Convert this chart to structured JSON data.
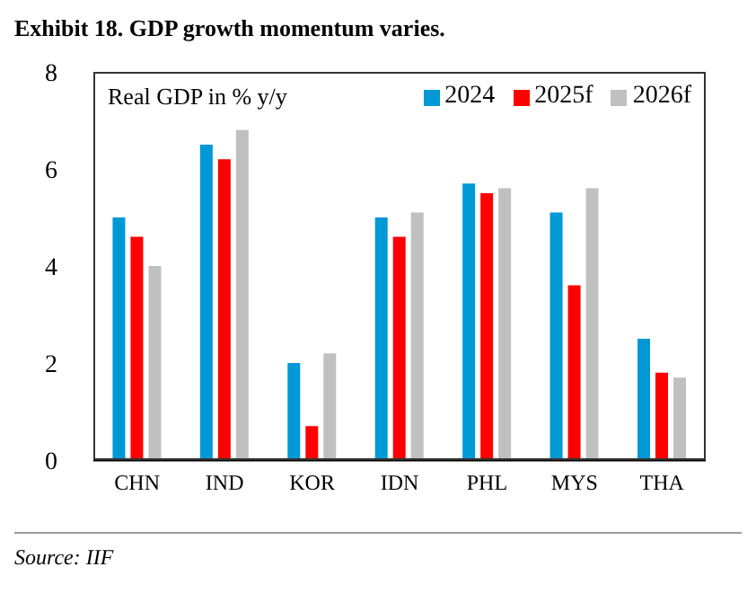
{
  "chart_data": {
    "type": "bar",
    "title": "Exhibit 18. GDP growth momentum varies.",
    "categories": [
      "CHN",
      "IND",
      "KOR",
      "IDN",
      "PHL",
      "MYS",
      "THA"
    ],
    "series": [
      {
        "name": "2024",
        "color": "#0099d6",
        "values": [
          5.0,
          6.5,
          2.0,
          5.0,
          5.7,
          5.1,
          2.5
        ]
      },
      {
        "name": "2025f",
        "color": "#ff0000",
        "values": [
          4.6,
          6.2,
          0.7,
          4.6,
          5.5,
          3.6,
          1.8
        ]
      },
      {
        "name": "2026f",
        "color": "#c0c0c0",
        "values": [
          4.0,
          6.8,
          2.2,
          5.1,
          5.6,
          5.6,
          1.7
        ]
      }
    ],
    "ylim": [
      0,
      8
    ],
    "yticks": [
      0,
      2,
      4,
      6,
      8
    ],
    "grid": false,
    "legend": "top right",
    "annotations": [
      "Real GDP in % y/y",
      "Source: IIF"
    ]
  }
}
